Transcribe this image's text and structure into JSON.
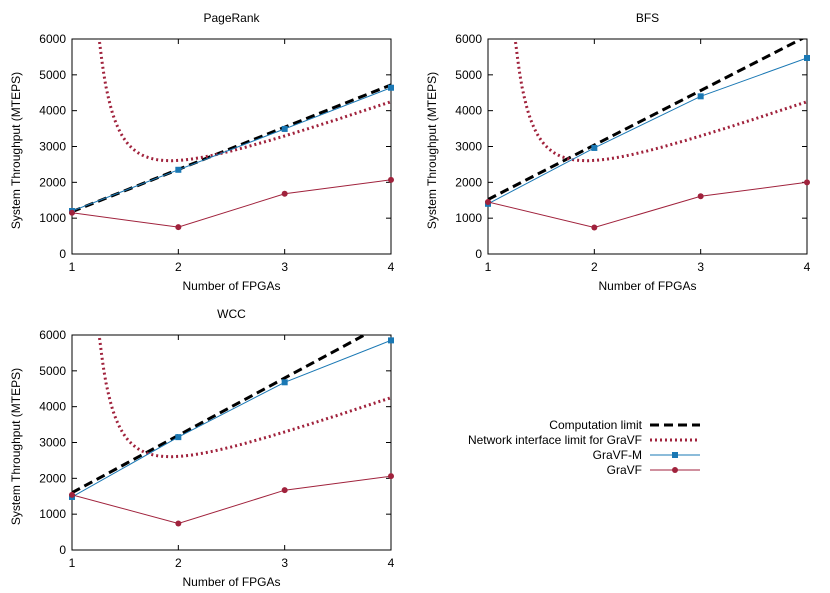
{
  "chart_data": [
    {
      "type": "line",
      "title": "PageRank",
      "xlabel": "Number of FPGAs",
      "ylabel": "System Throughput (MTEPS)",
      "xlim": [
        1,
        4
      ],
      "ylim": [
        0,
        6000
      ],
      "xticks": [
        "1",
        "2",
        "3",
        "4"
      ],
      "yticks": [
        "0",
        "1000",
        "2000",
        "3000",
        "4000",
        "5000",
        "6000"
      ],
      "grid": false,
      "series": [
        {
          "name": "Computation limit",
          "style": "dashed",
          "color": "#000000",
          "kind": "linear",
          "a": 1180,
          "b": 1180
        },
        {
          "name": "Network interface limit for GraVF",
          "style": "dotted",
          "color": "#a0223c",
          "kind": "network",
          "a": 1040,
          "b": 3130
        },
        {
          "name": "GraVF-M",
          "style": "solid-square",
          "color": "#1a78b4",
          "x": [
            1,
            2,
            3,
            4
          ],
          "y": [
            1200,
            2350,
            3490,
            4640
          ]
        },
        {
          "name": "GraVF",
          "style": "solid-circle",
          "color": "#a0223c",
          "x": [
            1,
            2,
            3,
            4
          ],
          "y": [
            1150,
            750,
            1680,
            2070
          ]
        }
      ]
    },
    {
      "type": "line",
      "title": "BFS",
      "xlabel": "Number of FPGAs",
      "ylabel": "System Throughput (MTEPS)",
      "xlim": [
        1,
        4
      ],
      "ylim": [
        0,
        6000
      ],
      "xticks": [
        "1",
        "2",
        "3",
        "4"
      ],
      "yticks": [
        "0",
        "1000",
        "2000",
        "3000",
        "4000",
        "5000",
        "6000"
      ],
      "grid": false,
      "series": [
        {
          "name": "Computation limit",
          "style": "dashed",
          "color": "#000000",
          "kind": "linear",
          "a": 1520,
          "b": 1520
        },
        {
          "name": "Network interface limit for GraVF",
          "style": "dotted",
          "color": "#a0223c",
          "kind": "network",
          "a": 1040,
          "b": 3130
        },
        {
          "name": "GraVF-M",
          "style": "solid-square",
          "color": "#1a78b4",
          "x": [
            1,
            2,
            3,
            4
          ],
          "y": [
            1400,
            2960,
            4400,
            5470
          ]
        },
        {
          "name": "GraVF",
          "style": "solid-circle",
          "color": "#a0223c",
          "x": [
            1,
            2,
            3,
            4
          ],
          "y": [
            1450,
            740,
            1610,
            2000
          ]
        }
      ]
    },
    {
      "type": "line",
      "title": "WCC",
      "xlabel": "Number of FPGAs",
      "ylabel": "System Throughput (MTEPS)",
      "xlim": [
        1,
        4
      ],
      "ylim": [
        0,
        6000
      ],
      "xticks": [
        "1",
        "2",
        "3",
        "4"
      ],
      "yticks": [
        "0",
        "1000",
        "2000",
        "3000",
        "4000",
        "5000",
        "6000"
      ],
      "grid": false,
      "series": [
        {
          "name": "Computation limit",
          "style": "dashed",
          "color": "#000000",
          "kind": "linear",
          "a": 1600,
          "b": 1600
        },
        {
          "name": "Network interface limit for GraVF",
          "style": "dotted",
          "color": "#a0223c",
          "kind": "network",
          "a": 1040,
          "b": 3130
        },
        {
          "name": "GraVF-M",
          "style": "solid-square",
          "color": "#1a78b4",
          "x": [
            1,
            2,
            3,
            4
          ],
          "y": [
            1480,
            3150,
            4680,
            5850
          ]
        },
        {
          "name": "GraVF",
          "style": "solid-circle",
          "color": "#a0223c",
          "x": [
            1,
            2,
            3,
            4
          ],
          "y": [
            1540,
            740,
            1670,
            2060
          ]
        }
      ]
    }
  ],
  "legend": {
    "placement": "bottom-right",
    "entries": [
      {
        "label": "Computation limit",
        "style": "dashed",
        "color": "#000000"
      },
      {
        "label": "Network interface limit for GraVF",
        "style": "dotted",
        "color": "#a0223c"
      },
      {
        "label": "GraVF-M",
        "style": "solid-square",
        "color": "#1a78b4"
      },
      {
        "label": "GraVF",
        "style": "solid-circle",
        "color": "#a0223c"
      }
    ]
  }
}
